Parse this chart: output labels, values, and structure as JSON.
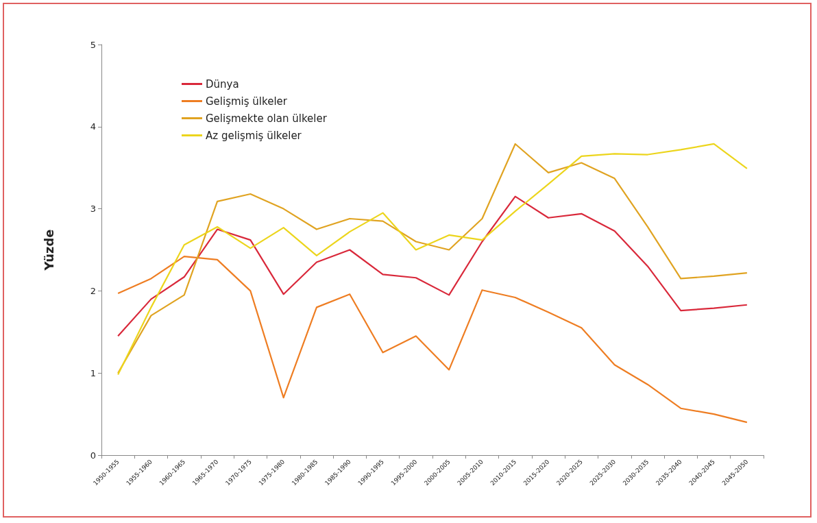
{
  "chart_data": {
    "type": "line",
    "ylabel": "Yüzde",
    "categories": [
      "1950-1955",
      "1955-1960",
      "1960-1965",
      "1965-1970",
      "1970-1975",
      "1975-1980",
      "1980-1985",
      "1985-1990",
      "1990-1995",
      "1995-2000",
      "2000-2005",
      "2005-2010",
      "2010-2015",
      "2015-2020",
      "2020-2025",
      "2025-2030",
      "2030-2035",
      "2035-2040",
      "2040-2045",
      "2045-2050"
    ],
    "series": [
      {
        "name": "Dünya",
        "color": "#d9283a",
        "values": [
          1.45,
          1.9,
          2.17,
          2.75,
          2.62,
          1.96,
          2.35,
          2.5,
          2.2,
          2.16,
          1.95,
          2.6,
          3.15,
          2.89,
          2.94,
          2.73,
          2.3,
          1.76,
          1.79,
          1.83
        ]
      },
      {
        "name": "Gelişmiş ülkeler",
        "color": "#ee7d22",
        "values": [
          1.97,
          2.15,
          2.42,
          2.38,
          2.0,
          0.7,
          1.8,
          1.96,
          1.25,
          1.45,
          1.04,
          2.01,
          1.92,
          1.74,
          1.55,
          1.1,
          0.86,
          0.57,
          0.5,
          0.4
        ]
      },
      {
        "name": "Gelişmekte olan ülkeler",
        "color": "#e0a321",
        "values": [
          1.0,
          1.7,
          1.95,
          3.09,
          3.18,
          3.0,
          2.75,
          2.88,
          2.85,
          2.6,
          2.5,
          2.88,
          3.79,
          3.44,
          3.56,
          3.37,
          2.78,
          2.15,
          2.18,
          2.22
        ]
      },
      {
        "name": "Az gelişmiş ülkeler",
        "color": "#ecd51c",
        "values": [
          0.98,
          1.8,
          2.56,
          2.78,
          2.52,
          2.77,
          2.43,
          2.72,
          2.95,
          2.5,
          2.68,
          2.62,
          2.97,
          3.3,
          3.64,
          3.67,
          3.66,
          3.72,
          3.79,
          3.49
        ]
      }
    ],
    "ylim": [
      0,
      5
    ],
    "yticks": [
      0,
      1,
      2,
      3,
      4,
      5
    ],
    "grid": false,
    "legend": "top left",
    "marker": "none",
    "line_style": "solid"
  }
}
